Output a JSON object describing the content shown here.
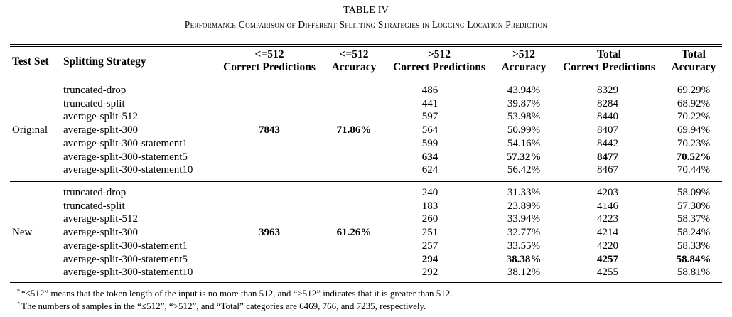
{
  "caption": {
    "label": "TABLE IV",
    "title": "Performance Comparison of Different Splitting Strategies in Logging Location Prediction"
  },
  "headers": {
    "test_set": "Test Set",
    "strategy": "Splitting Strategy",
    "le_correct": [
      "<=512",
      "Correct Predictions"
    ],
    "le_accuracy": [
      "<=512",
      "Accuracy"
    ],
    "gt_correct": [
      ">512",
      "Correct Predictions"
    ],
    "gt_accuracy": [
      ">512",
      "Accuracy"
    ],
    "total_correct": [
      "Total",
      "Correct Predictions"
    ],
    "total_accuracy": [
      "Total",
      "Accuracy"
    ]
  },
  "groups": [
    {
      "test_set": "Original",
      "le_correct": "7843",
      "le_accuracy": "71.86%",
      "rows": [
        {
          "strategy": "truncated-drop",
          "gt_correct": "486",
          "gt_accuracy": "43.94%",
          "total_correct": "8329",
          "total_accuracy": "69.29%",
          "bold": false
        },
        {
          "strategy": "truncated-split",
          "gt_correct": "441",
          "gt_accuracy": "39.87%",
          "total_correct": "8284",
          "total_accuracy": "68.92%",
          "bold": false
        },
        {
          "strategy": "average-split-512",
          "gt_correct": "597",
          "gt_accuracy": "53.98%",
          "total_correct": "8440",
          "total_accuracy": "70.22%",
          "bold": false
        },
        {
          "strategy": "average-split-300",
          "gt_correct": "564",
          "gt_accuracy": "50.99%",
          "total_correct": "8407",
          "total_accuracy": "69.94%",
          "bold": false
        },
        {
          "strategy": "average-split-300-statement1",
          "gt_correct": "599",
          "gt_accuracy": "54.16%",
          "total_correct": "8442",
          "total_accuracy": "70.23%",
          "bold": false
        },
        {
          "strategy": "average-split-300-statement5",
          "gt_correct": "634",
          "gt_accuracy": "57.32%",
          "total_correct": "8477",
          "total_accuracy": "70.52%",
          "bold": true
        },
        {
          "strategy": "average-split-300-statement10",
          "gt_correct": "624",
          "gt_accuracy": "56.42%",
          "total_correct": "8467",
          "total_accuracy": "70.44%",
          "bold": false
        }
      ]
    },
    {
      "test_set": "New",
      "le_correct": "3963",
      "le_accuracy": "61.26%",
      "rows": [
        {
          "strategy": "truncated-drop",
          "gt_correct": "240",
          "gt_accuracy": "31.33%",
          "total_correct": "4203",
          "total_accuracy": "58.09%",
          "bold": false
        },
        {
          "strategy": "truncated-split",
          "gt_correct": "183",
          "gt_accuracy": "23.89%",
          "total_correct": "4146",
          "total_accuracy": "57.30%",
          "bold": false
        },
        {
          "strategy": "average-split-512",
          "gt_correct": "260",
          "gt_accuracy": "33.94%",
          "total_correct": "4223",
          "total_accuracy": "58.37%",
          "bold": false
        },
        {
          "strategy": "average-split-300",
          "gt_correct": "251",
          "gt_accuracy": "32.77%",
          "total_correct": "4214",
          "total_accuracy": "58.24%",
          "bold": false
        },
        {
          "strategy": "average-split-300-statement1",
          "gt_correct": "257",
          "gt_accuracy": "33.55%",
          "total_correct": "4220",
          "total_accuracy": "58.33%",
          "bold": false
        },
        {
          "strategy": "average-split-300-statement5",
          "gt_correct": "294",
          "gt_accuracy": "38.38%",
          "total_correct": "4257",
          "total_accuracy": "58.84%",
          "bold": true
        },
        {
          "strategy": "average-split-300-statement10",
          "gt_correct": "292",
          "gt_accuracy": "38.12%",
          "total_correct": "4255",
          "total_accuracy": "58.81%",
          "bold": false
        }
      ]
    }
  ],
  "footnotes": [
    {
      "mark": "*",
      "text": "“≤512” means that the token length of the input is no more than 512, and “>512” indicates that it is greater than 512."
    },
    {
      "mark": "*",
      "text": "The numbers of samples in the “≤512”, “>512”, and “Total” categories are 6469, 766, and 7235, respectively."
    }
  ]
}
